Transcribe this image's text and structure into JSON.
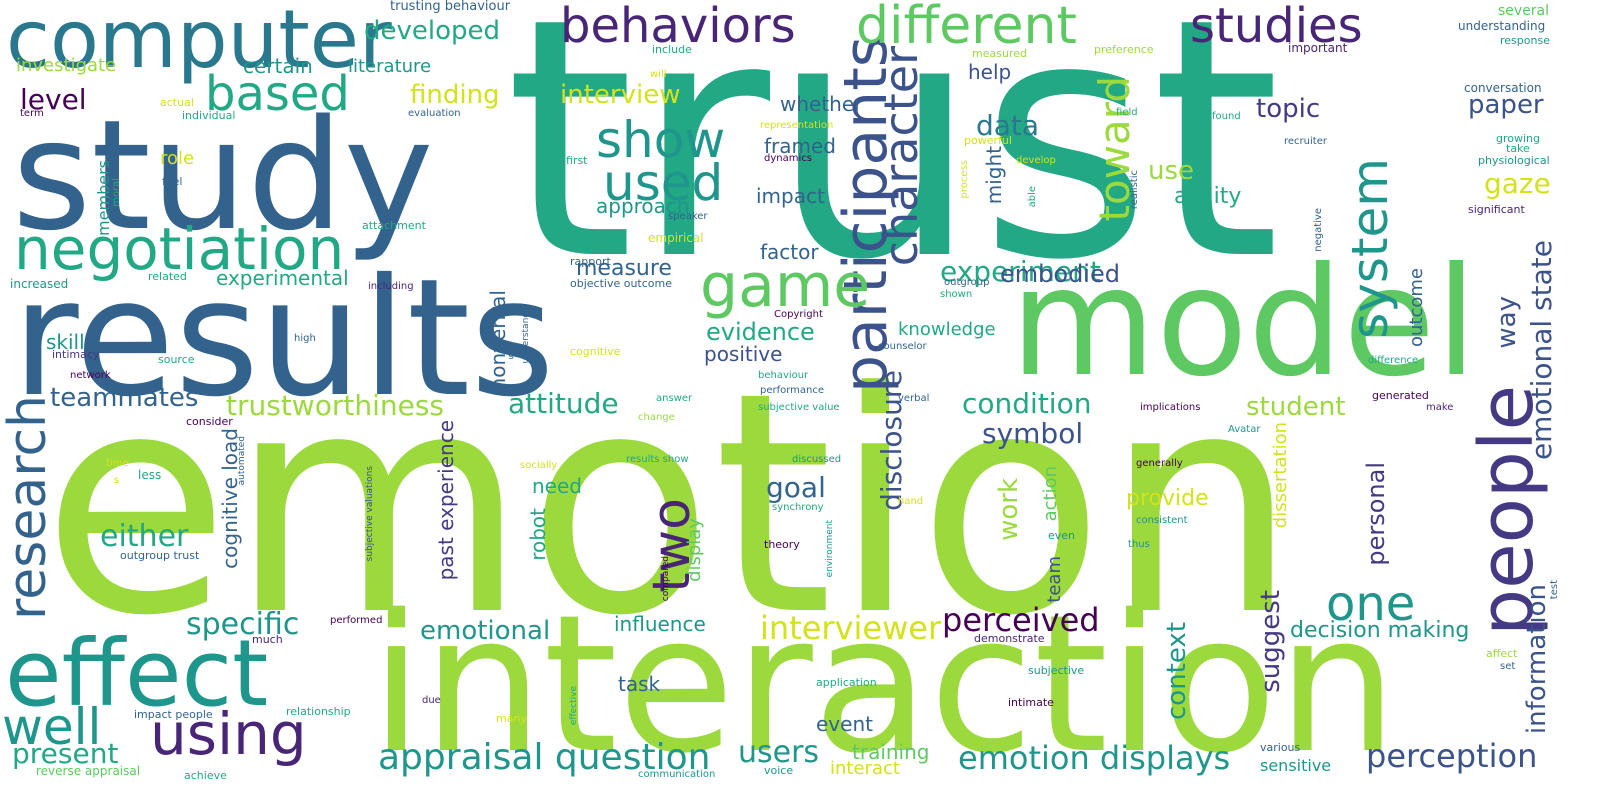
{
  "cloud": {
    "background": "#ffffff",
    "palette": [
      "#440154",
      "#482576",
      "#443983",
      "#3b528b",
      "#33638d",
      "#2a788e",
      "#1f968b",
      "#22a884",
      "#5ec962",
      "#9bd93c",
      "#d2e21b"
    ],
    "words": {
      "trust": "trust",
      "emotion": "emotion",
      "interaction": "interaction",
      "model": "model",
      "results": "results",
      "study": "study",
      "computer": "computer",
      "negotiation": "negotiation",
      "effect": "effect",
      "people": "people",
      "participants": "participants",
      "game": "game",
      "using": "using",
      "different": "different",
      "behaviors": "behaviors",
      "studies": "studies",
      "research": "research",
      "system": "system",
      "character": "character",
      "show": "show",
      "used": "used",
      "two": "two",
      "one": "one",
      "well": "well",
      "based": "based",
      "toward": "toward",
      "appraisal_question": "appraisal question",
      "emotion_displays": "emotion displays",
      "interviewer": "interviewer",
      "perceived": "perceived",
      "perception": "perception",
      "trustworthiness": "trustworthiness",
      "attitude": "attitude",
      "condition": "condition",
      "experiment": "experiment",
      "emotional_state": "emotional state",
      "emotional": "emotional",
      "specific": "specific",
      "either": "either",
      "teammates": "teammates",
      "present": "present",
      "users": "users",
      "paper": "paper",
      "gaze": "gaze",
      "topic": "topic",
      "data": "data",
      "developed": "developed",
      "finding": "finding",
      "interview": "interview",
      "disclosure": "disclosure",
      "symbol": "symbol",
      "goal": "goal",
      "evidence": "evidence",
      "embodied": "embodied",
      "information": "information",
      "way": "way",
      "student": "student",
      "suggest": "suggest",
      "context": "context",
      "personal": "personal",
      "decision_making": "decision making",
      "influence": "influence",
      "work": "work",
      "provide": "provide",
      "level": "level",
      "certain": "certain",
      "literature": "literature",
      "investigate": "investigate",
      "experimental": "experimental",
      "measure": "measure",
      "approach": "approach",
      "framed": "framed",
      "whether": "whether",
      "impact": "impact",
      "factor": "factor",
      "use": "use",
      "ability": "ability",
      "might": "might",
      "help": "help",
      "knowledge": "knowledge",
      "positive": "positive",
      "nonverbal": "nonverbal",
      "past_experience": "past experience",
      "cognitive_load": "cognitive load",
      "skill": "skill",
      "need": "need",
      "robot": "robot",
      "display": "display",
      "task": "task",
      "event": "event",
      "training": "training",
      "interact": "interact",
      "sensitive": "sensitive",
      "outcome": "outcome",
      "dissertation": "dissertation",
      "team": "team",
      "action": "action",
      "role": "role",
      "members": "members",
      "trusting_behaviour": "trusting behaviour",
      "actual": "actual",
      "individual": "individual",
      "term": "term",
      "evaluation": "evaluation",
      "include": "include",
      "will": "will",
      "representation": "representation",
      "dynamics": "dynamics",
      "first": "first",
      "measured": "measured",
      "preference": "preference",
      "important": "important",
      "several": "several",
      "understanding": "understanding",
      "response": "response",
      "conversation": "conversation",
      "field": "field",
      "found": "found",
      "recruiter": "recruiter",
      "growing": "growing",
      "take": "take",
      "physiological": "physiological",
      "significant": "significant",
      "powerful": "powerful",
      "develop": "develop",
      "process": "process",
      "able": "able",
      "realistic": "realistic",
      "speaker": "speaker",
      "negative": "negative",
      "feel": "feel",
      "moral": "moral",
      "attachment": "attachment",
      "empirical": "empirical",
      "rapport": "rapport",
      "objective_outcome": "objective outcome",
      "related": "related",
      "increased": "increased",
      "including": "including",
      "outgroup": "outgroup",
      "shown": "shown",
      "copyright": "Copyright",
      "understand": "understand",
      "counselor": "counselor",
      "intimacy": "intimacy",
      "high": "high",
      "source": "source",
      "given": "given",
      "cognitive": "cognitive",
      "network": "network",
      "behaviour": "behaviour",
      "performance": "performance",
      "verbal": "verbal",
      "consider": "consider",
      "answer": "answer",
      "change": "change",
      "subjective_value": "subjective value",
      "implications": "implications",
      "generated": "generated",
      "make": "make",
      "difference": "difference",
      "time": "time",
      "s": "s",
      "less": "less",
      "automated": "automated",
      "socially": "socially",
      "results_show": "results show",
      "discussed": "discussed",
      "avatar": "Avatar",
      "generally": "generally",
      "hand": "hand",
      "synchrony": "synchrony",
      "theory": "theory",
      "environment": "environment",
      "even": "even",
      "consistent": "consistent",
      "thus": "thus",
      "outgroup_trust": "outgroup trust",
      "subjective_valuations": "subjective valuations",
      "compared": "compared",
      "performed": "performed",
      "much": "much",
      "demonstrate": "demonstrate",
      "test": "test",
      "affect": "affect",
      "set": "set",
      "subjective": "subjective",
      "application": "application",
      "relationship": "relationship",
      "effective": "effective",
      "impact_people": "impact people",
      "due": "due",
      "intimate": "intimate",
      "many": "many",
      "various": "various",
      "reverse_appraisal": "reverse appraisal",
      "achieve": "achieve",
      "communication": "communication",
      "voice": "voice"
    }
  }
}
